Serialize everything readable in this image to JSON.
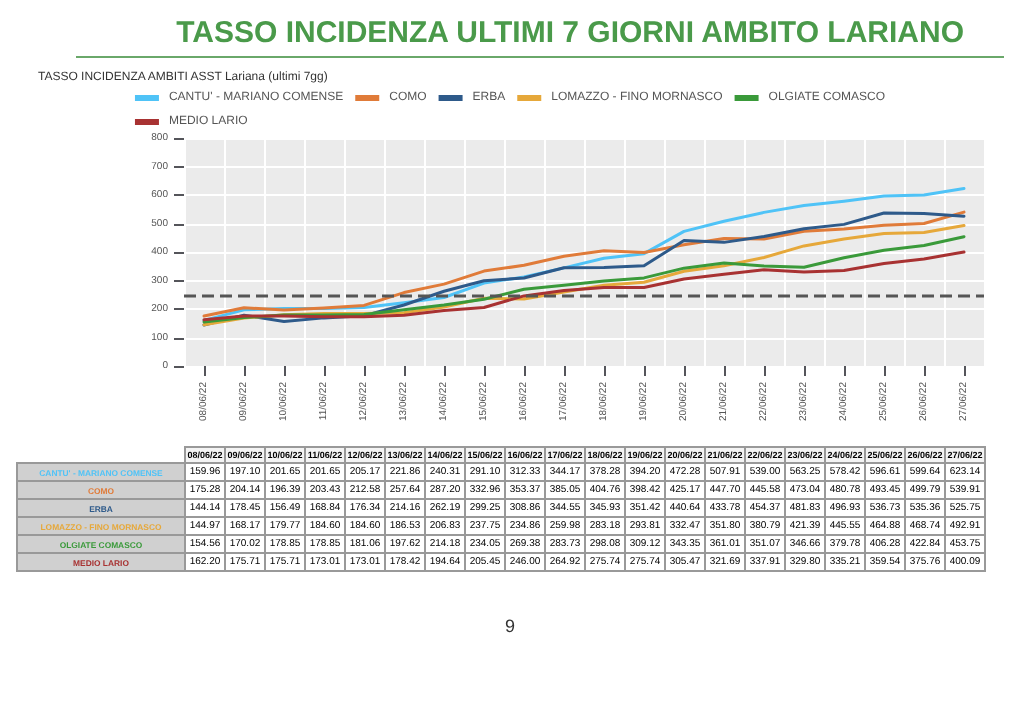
{
  "chart_data": {
    "type": "line",
    "title": "TASSO INCIDENZA ULTIMI 7 GIORNI AMBITO LARIANO",
    "subtitle": "TASSO INCIDENZA AMBITI ASST Lariana (ultimi 7gg)",
    "categories": [
      "08/06/22",
      "09/06/22",
      "10/06/22",
      "11/06/22",
      "12/06/22",
      "13/06/22",
      "14/06/22",
      "15/06/22",
      "16/06/22",
      "17/06/22",
      "18/06/22",
      "19/06/22",
      "20/06/22",
      "21/06/22",
      "22/06/22",
      "23/06/22",
      "24/06/22",
      "25/06/22",
      "26/06/22",
      "27/06/22"
    ],
    "series": [
      {
        "name": "CANTU' - MARIANO COMENSE",
        "color": "#4fc3f7",
        "values": [
          159.96,
          197.1,
          201.65,
          201.65,
          205.17,
          221.86,
          240.31,
          291.1,
          312.33,
          344.17,
          378.28,
          394.2,
          472.28,
          507.91,
          539.0,
          563.25,
          578.42,
          596.61,
          599.64,
          623.14
        ],
        "value_labels": [
          "159.96",
          "197.10",
          "201.65",
          "201.65",
          "205.17",
          "221.86",
          "240.31",
          "291.10",
          "312.33",
          "344.17",
          "378.28",
          "394.20",
          "472.28",
          "507.91",
          "539.00",
          "563.25",
          "578.42",
          "596.61",
          "599.64",
          "623.14"
        ]
      },
      {
        "name": "COMO",
        "color": "#e07b39",
        "values": [
          175.28,
          204.14,
          196.39,
          203.43,
          212.58,
          257.64,
          287.2,
          332.96,
          353.37,
          385.05,
          404.76,
          398.42,
          425.17,
          447.7,
          445.58,
          473.04,
          480.78,
          493.45,
          499.79,
          539.91
        ],
        "value_labels": [
          "175.28",
          "204.14",
          "196.39",
          "203.43",
          "212.58",
          "257.64",
          "287.20",
          "332.96",
          "353.37",
          "385.05",
          "404.76",
          "398.42",
          "425.17",
          "447.70",
          "445.58",
          "473.04",
          "480.78",
          "493.45",
          "499.79",
          "539.91"
        ]
      },
      {
        "name": "ERBA",
        "color": "#2e5a8a",
        "values": [
          144.14,
          178.45,
          156.49,
          168.84,
          176.34,
          214.16,
          262.19,
          299.25,
          308.86,
          344.55,
          345.93,
          351.42,
          440.64,
          433.78,
          454.37,
          481.83,
          496.93,
          536.73,
          535.36,
          525.75
        ],
        "value_labels": [
          "144.14",
          "178.45",
          "156.49",
          "168.84",
          "176.34",
          "214.16",
          "262.19",
          "299.25",
          "308.86",
          "344.55",
          "345.93",
          "351.42",
          "440.64",
          "433.78",
          "454.37",
          "481.83",
          "496.93",
          "536.73",
          "535.36",
          "525.75"
        ]
      },
      {
        "name": "LOMAZZO - FINO MORNASCO",
        "color": "#e6a83a",
        "values": [
          144.97,
          168.17,
          179.77,
          184.6,
          184.6,
          186.53,
          206.83,
          237.75,
          234.86,
          259.98,
          283.18,
          293.81,
          332.47,
          351.8,
          380.79,
          421.39,
          445.55,
          464.88,
          468.74,
          492.91
        ],
        "value_labels": [
          "144.97",
          "168.17",
          "179.77",
          "184.60",
          "184.60",
          "186.53",
          "206.83",
          "237.75",
          "234.86",
          "259.98",
          "283.18",
          "293.81",
          "332.47",
          "351.80",
          "380.79",
          "421.39",
          "445.55",
          "464.88",
          "468.74",
          "492.91"
        ]
      },
      {
        "name": "OLGIATE COMASCO",
        "color": "#3a9a3a",
        "values": [
          154.56,
          170.02,
          178.85,
          178.85,
          181.06,
          197.62,
          214.18,
          234.05,
          269.38,
          283.73,
          298.08,
          309.12,
          343.35,
          361.01,
          351.07,
          346.66,
          379.78,
          406.28,
          422.84,
          453.75
        ],
        "value_labels": [
          "154.56",
          "170.02",
          "178.85",
          "178.85",
          "181.06",
          "197.62",
          "214.18",
          "234.05",
          "269.38",
          "283.73",
          "298.08",
          "309.12",
          "343.35",
          "361.01",
          "351.07",
          "346.66",
          "379.78",
          "406.28",
          "422.84",
          "453.75"
        ]
      },
      {
        "name": "MEDIO LARIO",
        "color": "#a83232",
        "values": [
          162.2,
          175.71,
          175.71,
          173.01,
          173.01,
          178.42,
          194.64,
          205.45,
          246.0,
          264.92,
          275.74,
          275.74,
          305.47,
          321.69,
          337.91,
          329.8,
          335.21,
          359.54,
          375.76,
          400.09
        ],
        "value_labels": [
          "162.20",
          "175.71",
          "175.71",
          "173.01",
          "173.01",
          "178.42",
          "194.64",
          "205.45",
          "246.00",
          "264.92",
          "275.74",
          "275.74",
          "305.47",
          "321.69",
          "337.91",
          "329.80",
          "335.21",
          "359.54",
          "375.76",
          "400.09"
        ]
      }
    ],
    "ylim": [
      0,
      800
    ],
    "yticks": [
      0,
      100,
      200,
      300,
      400,
      500,
      600,
      700,
      800
    ],
    "ref_lines": [
      {
        "axis": "y",
        "value": 250,
        "color": "#555555",
        "line_style": "dashed"
      }
    ],
    "grid": true,
    "legend": "top",
    "marker": "none",
    "line_style": "solid",
    "annotations": [
      "9"
    ]
  }
}
